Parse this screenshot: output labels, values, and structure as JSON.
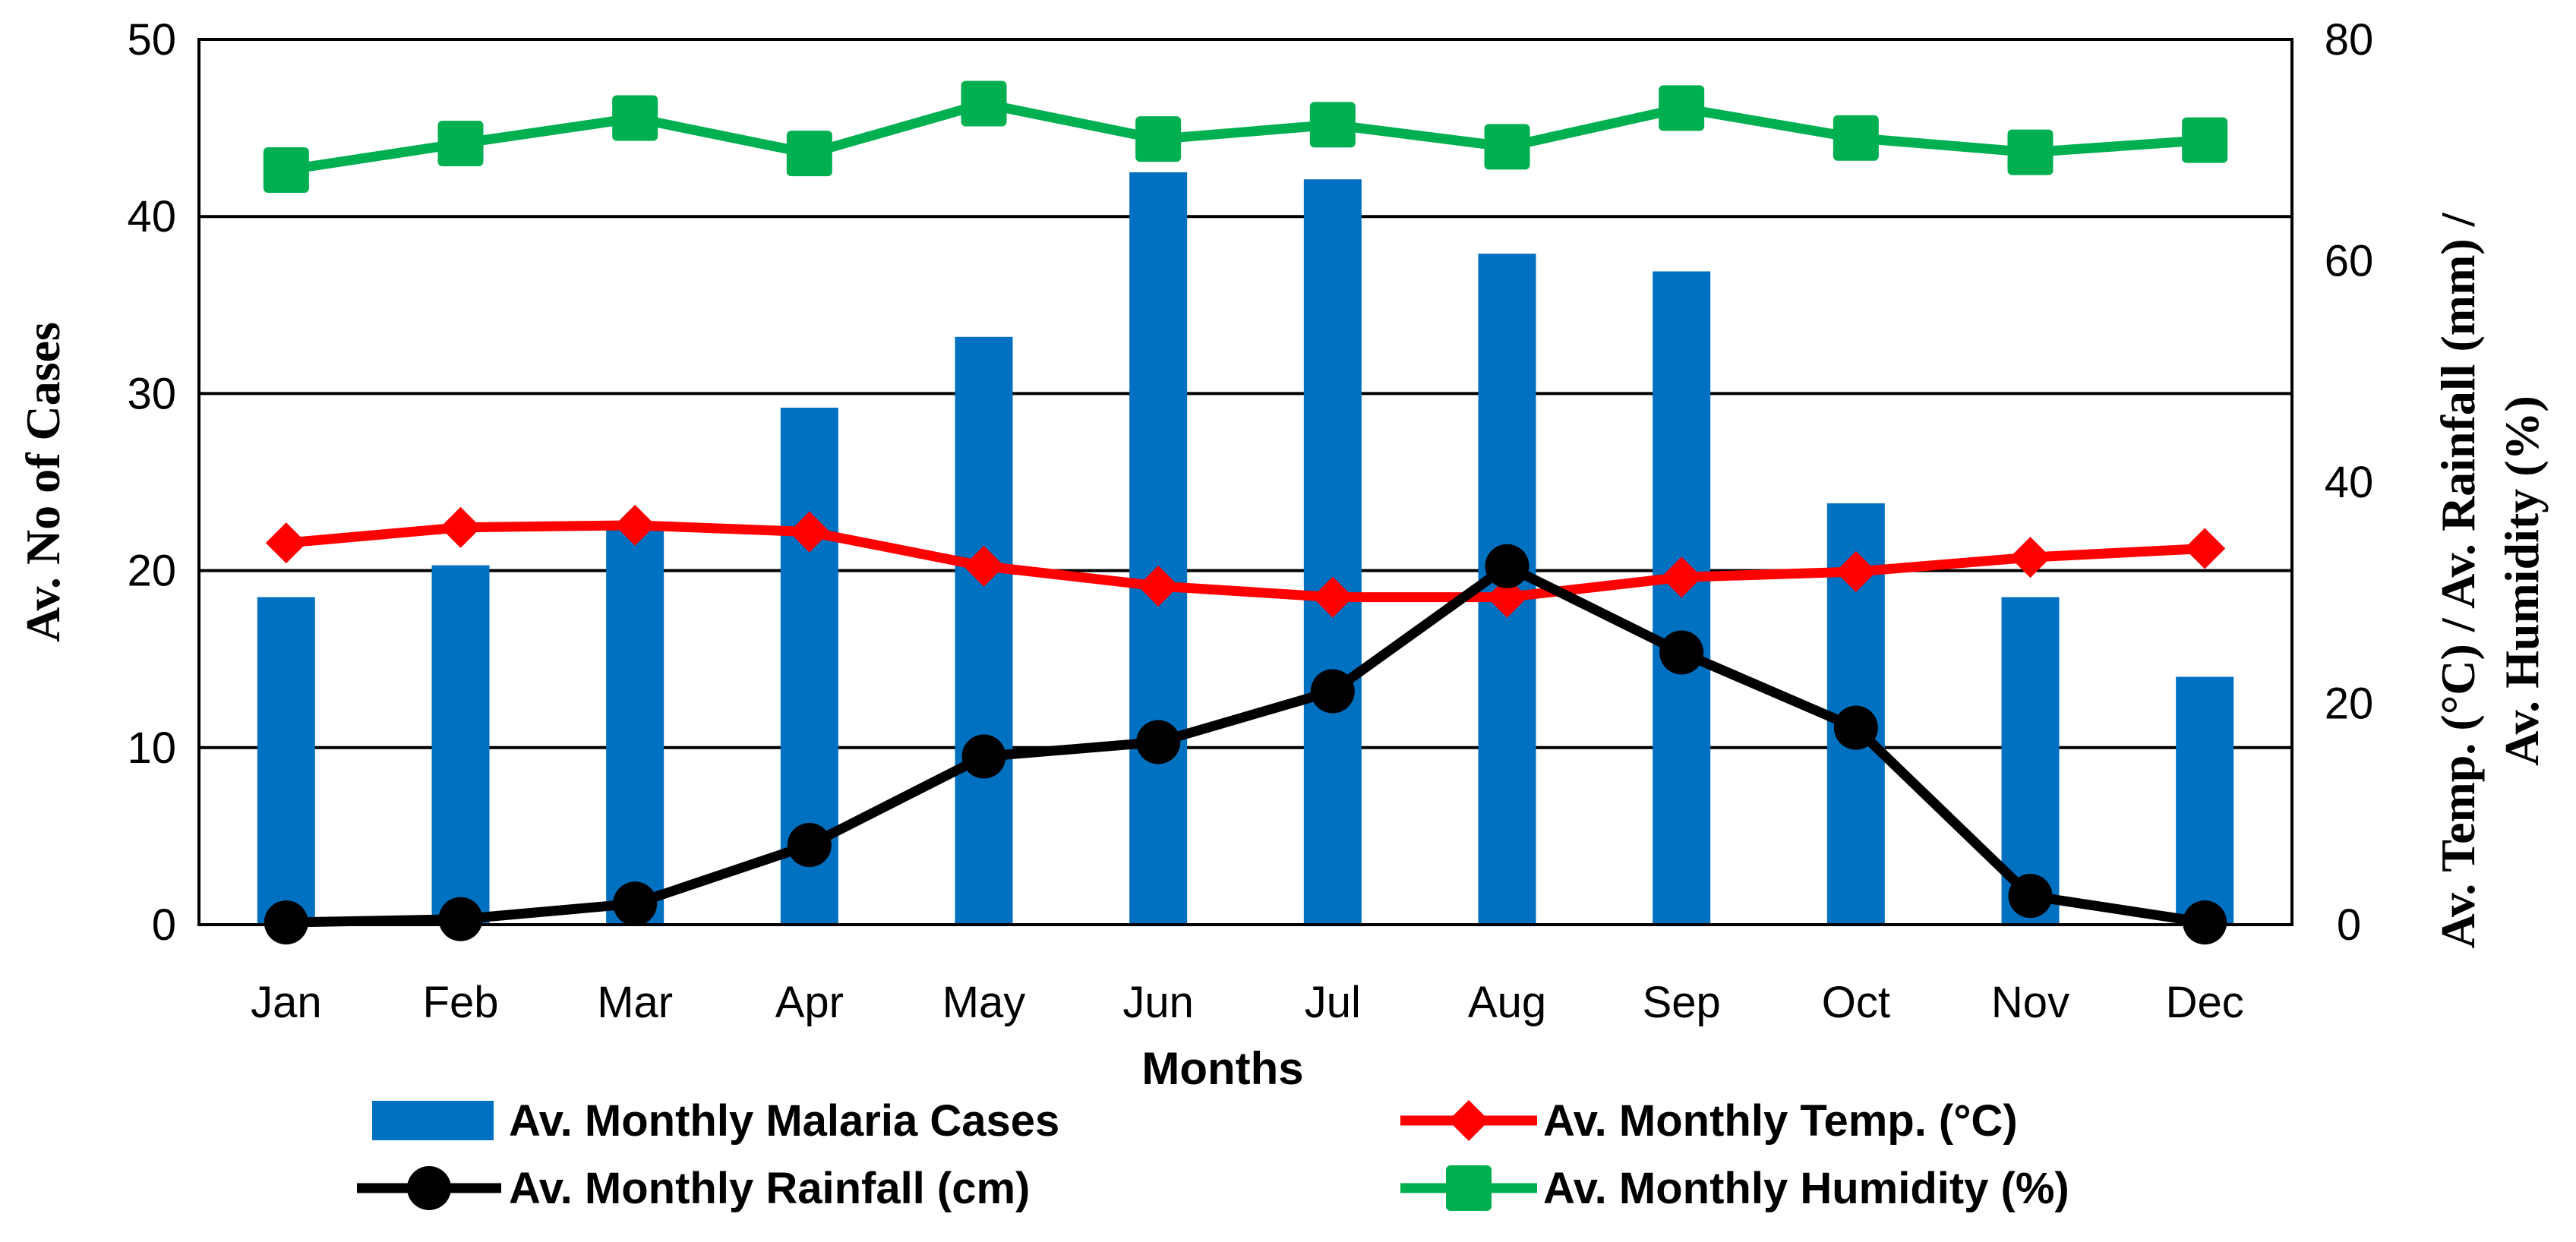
{
  "chart_data": {
    "type": "bar",
    "categories": [
      "Jan",
      "Feb",
      "Mar",
      "Apr",
      "May",
      "Jun",
      "Jul",
      "Aug",
      "Sep",
      "Oct",
      "Nov",
      "Dec"
    ],
    "xlabel": "Months",
    "ylabel": "Av. No of Cases",
    "y2label_line1": "Av. Temp. (°C) / Av. Rainfall (mm) /",
    "y2label_line2": "Av. Humidity (%)",
    "ylim": [
      0,
      50
    ],
    "y2lim": [
      0,
      80
    ],
    "yticks": [
      "0",
      "10",
      "20",
      "30",
      "40",
      "50"
    ],
    "y2ticks": [
      "0",
      "20",
      "40",
      "60",
      "80"
    ],
    "grid": true,
    "legend_position": "bottom",
    "series": [
      {
        "name": "Av. Monthly Malaria Cases",
        "kind": "bar",
        "axis": "left",
        "color": "#0070C0",
        "values": [
          18.5,
          20.3,
          22.3,
          29.2,
          33.2,
          42.5,
          42.1,
          37.9,
          36.9,
          23.8,
          18.5,
          14.0
        ]
      },
      {
        "name": "Av. Monthly Temp. (°C)",
        "kind": "line",
        "marker": "diamond",
        "axis": "right",
        "color": "#FF0000",
        "values": [
          34.5,
          35.9,
          36.1,
          35.5,
          32.4,
          30.6,
          29.6,
          29.6,
          31.4,
          31.9,
          33.2,
          34.0
        ]
      },
      {
        "name": "Av. Monthly Rainfall (cm)",
        "kind": "line",
        "marker": "circle",
        "axis": "right",
        "color": "#000000",
        "values": [
          0.2,
          0.5,
          1.9,
          7.2,
          15.2,
          16.5,
          21.1,
          32.4,
          24.6,
          17.8,
          2.6,
          0.2
        ]
      },
      {
        "name": "Av. Monthly Humidity (%)",
        "kind": "line",
        "marker": "square",
        "axis": "right",
        "color": "#00B050",
        "values": [
          68.2,
          70.6,
          72.9,
          69.7,
          74.2,
          71.0,
          72.3,
          70.3,
          73.8,
          71.1,
          69.8,
          70.9
        ]
      }
    ]
  }
}
